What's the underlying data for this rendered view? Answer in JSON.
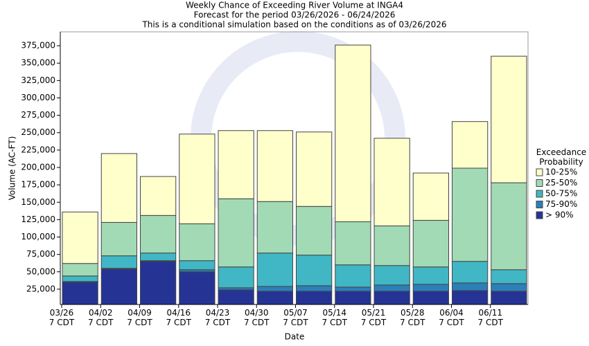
{
  "chart_data": {
    "type": "stacked_bar",
    "title": "Weekly Chance of Exceeding River Volume at INGA4",
    "subtitle": [
      "Forecast for the period 03/26/2026 - 06/24/2026",
      "This is a conditional simulation based on the conditions as of 03/26/2026"
    ],
    "x_label": "Date",
    "y_label": "Volume (AC-FT)",
    "legend_title": "Exceedance\nProbability",
    "categories": [
      "03/26\n7 CDT",
      "04/02\n7 CDT",
      "04/09\n7 CDT",
      "04/16\n7 CDT",
      "04/23\n7 CDT",
      "04/30\n7 CDT",
      "05/07\n7 CDT",
      "05/14\n7 CDT",
      "05/21\n7 CDT",
      "05/28\n7 CDT",
      "06/04\n7 CDT",
      "06/11\n7 CDT"
    ],
    "series": [
      {
        "name": "> 90%",
        "color": "#253494",
        "values": [
          35000,
          54000,
          65000,
          50000,
          24000,
          22000,
          22000,
          22000,
          22000,
          22000,
          23000,
          22000
        ]
      },
      {
        "name": "75-90%",
        "color": "#2c7fb8",
        "values": [
          1000,
          1000,
          1000,
          3000,
          3000,
          7000,
          8000,
          6000,
          9000,
          10000,
          11000,
          11000
        ]
      },
      {
        "name": "50-75%",
        "color": "#41b6c4",
        "values": [
          8000,
          18000,
          11000,
          13000,
          30000,
          48000,
          44000,
          32000,
          28000,
          25000,
          31000,
          20000
        ]
      },
      {
        "name": "25-50%",
        "color": "#a1dab4",
        "values": [
          18000,
          48000,
          54000,
          53000,
          98000,
          74000,
          70000,
          62000,
          57000,
          67000,
          134000,
          125000
        ]
      },
      {
        "name": "10-25%",
        "color": "#ffffcc",
        "values": [
          74000,
          99000,
          56000,
          129000,
          98000,
          102000,
          107000,
          254000,
          126000,
          68000,
          67000,
          182000
        ]
      }
    ],
    "ylim": [
      3000,
      395000
    ],
    "yticks": [
      {
        "value": 25000,
        "label": "25,000"
      },
      {
        "value": 50000,
        "label": "50,000"
      },
      {
        "value": 75000,
        "label": "75,000"
      },
      {
        "value": 100000,
        "label": "100,000"
      },
      {
        "value": 125000,
        "label": "125,000"
      },
      {
        "value": 150000,
        "label": "150,000"
      },
      {
        "value": 175000,
        "label": "175,000"
      },
      {
        "value": 200000,
        "label": "200,000"
      },
      {
        "value": 225000,
        "label": "225,000"
      },
      {
        "value": 250000,
        "label": "250,000"
      },
      {
        "value": 275000,
        "label": "275,000"
      },
      {
        "value": 300000,
        "label": "300,000"
      },
      {
        "value": 325000,
        "label": "325,000"
      },
      {
        "value": 350000,
        "label": "350,000"
      },
      {
        "value": 375000,
        "label": "375,000"
      }
    ]
  }
}
